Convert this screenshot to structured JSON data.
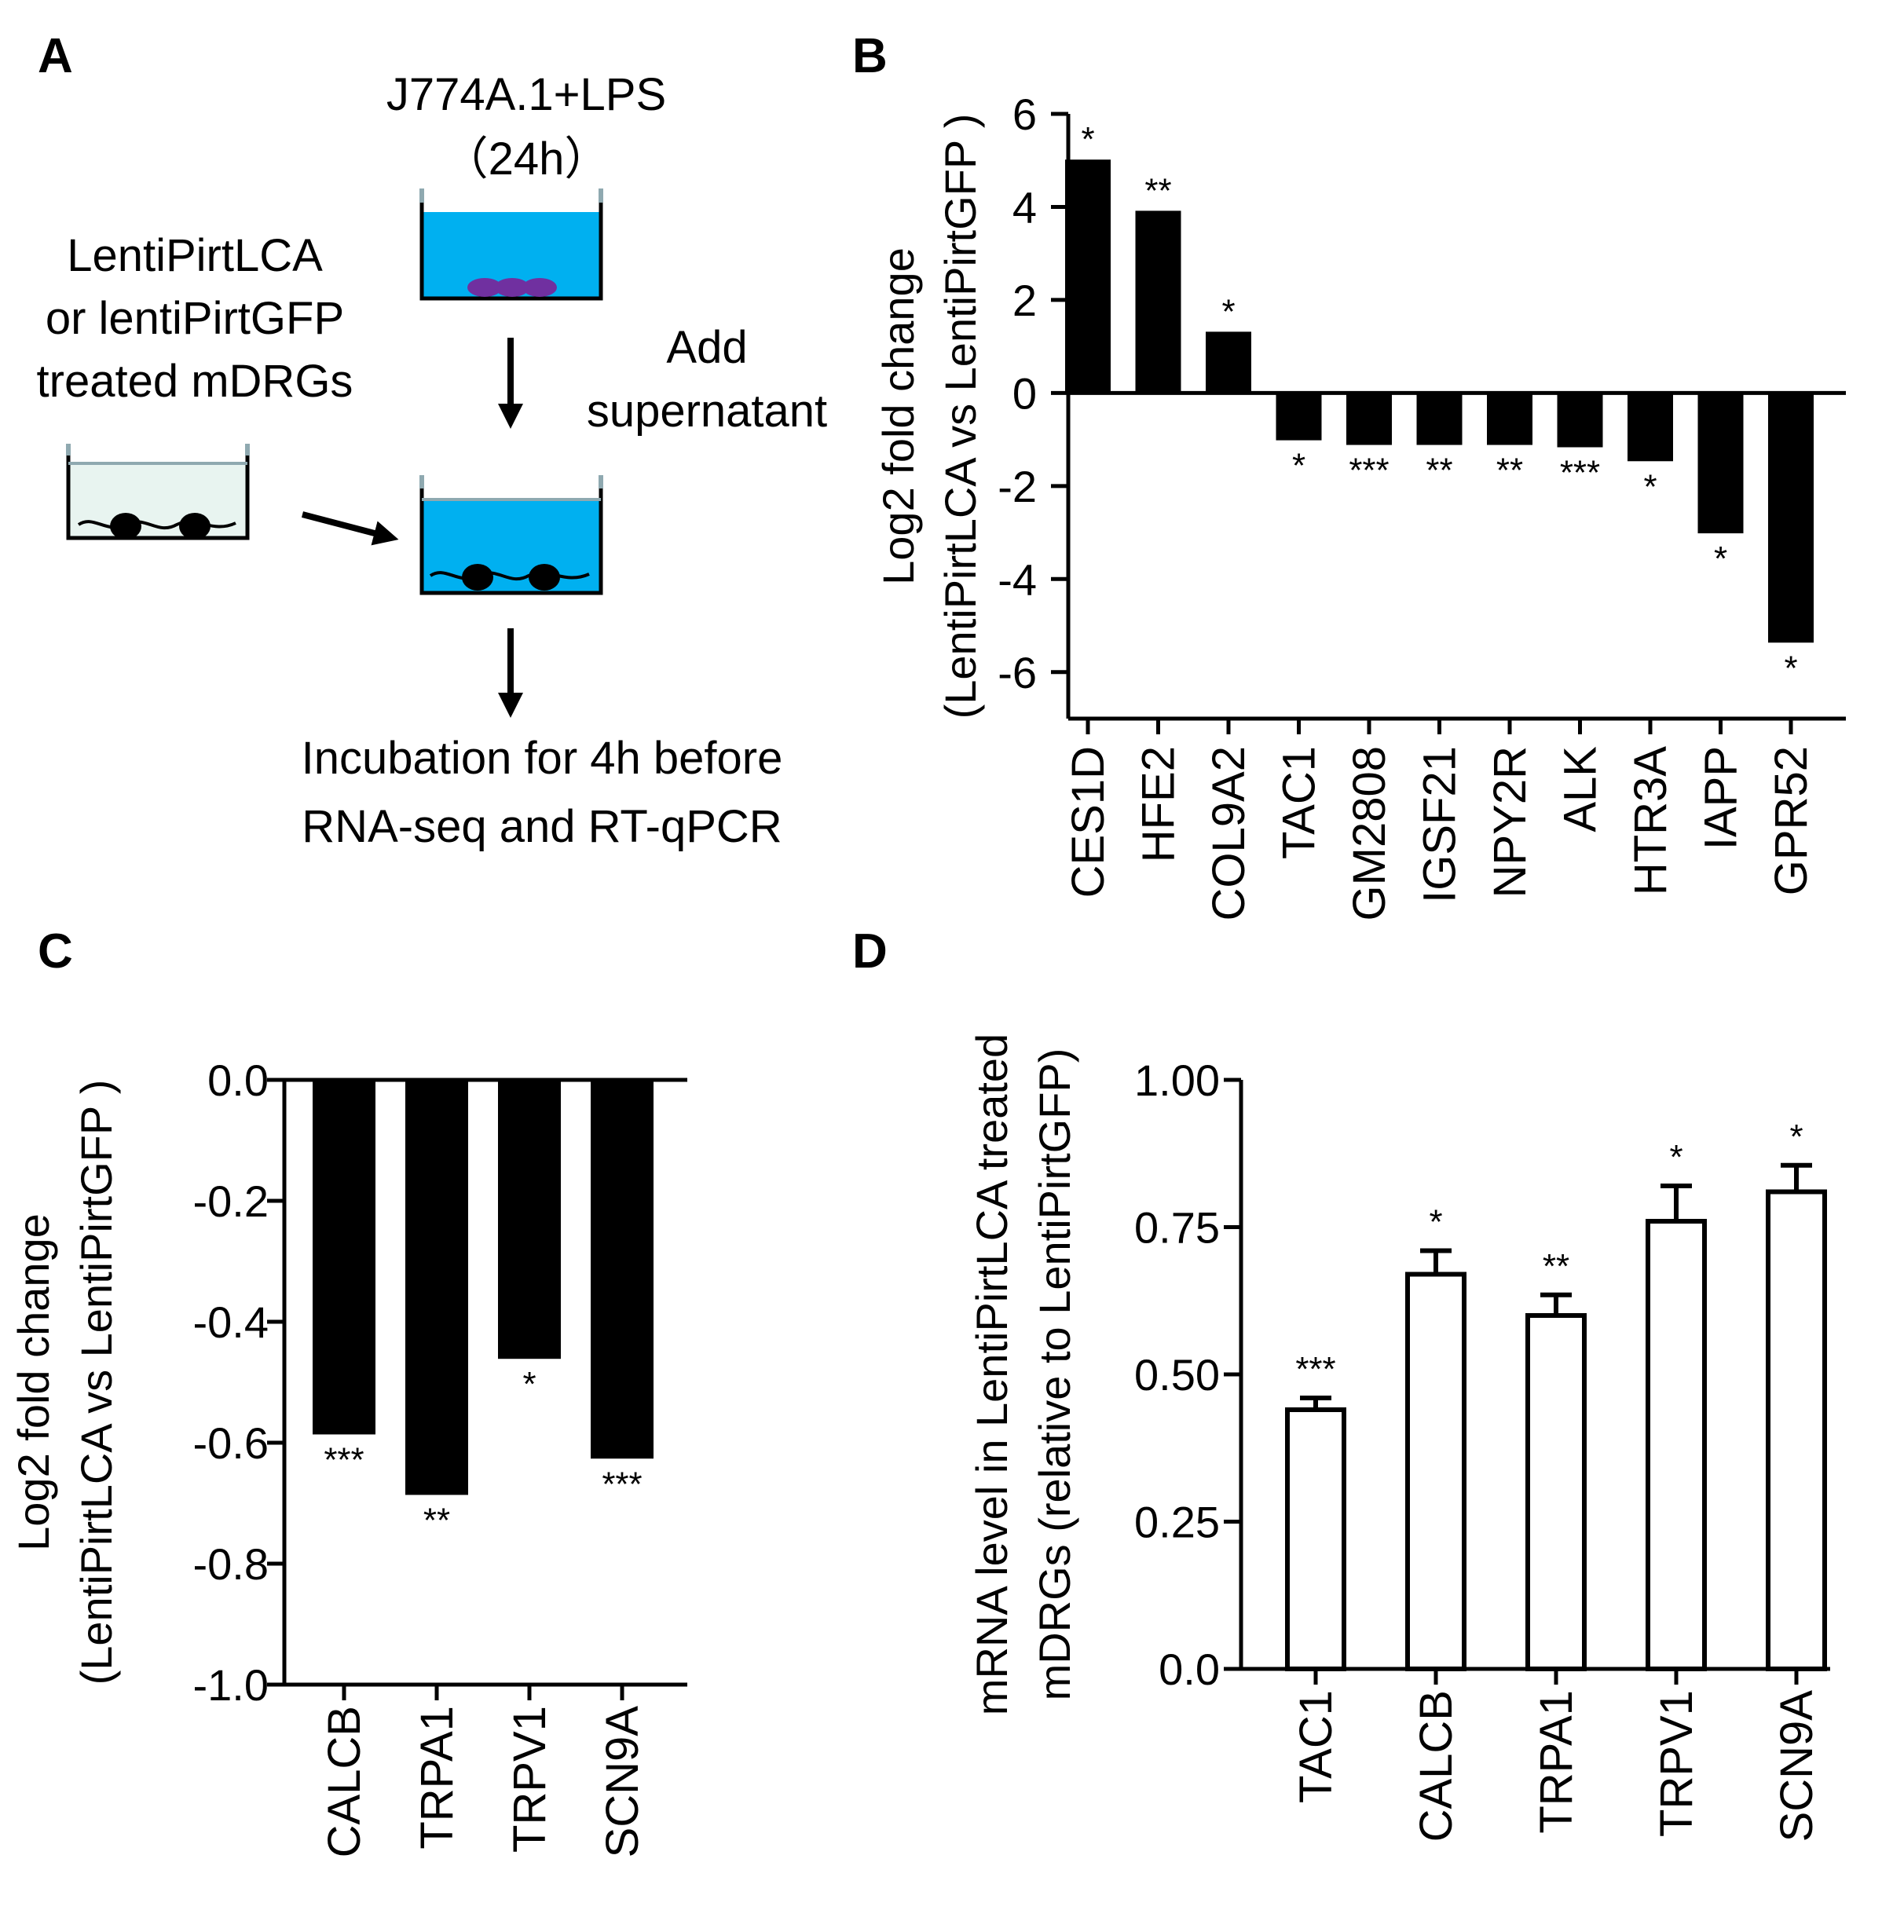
{
  "panel_letters": {
    "a": "A",
    "b": "B",
    "c": "C",
    "d": "D"
  },
  "diagram": {
    "macrophage_label": "J774A.1+LPS",
    "macrophage_time": "（24h）",
    "drg_label_line1": "LentiPirtLCA",
    "drg_label_line2": "or lentiPirtGFP",
    "drg_label_line3": "treated mDRGs",
    "add_label_line1": "Add",
    "add_label_line2": "supernatant",
    "incubation_line1": "Incubation for 4h before",
    "incubation_line2": "RNA-seq and RT-qPCR",
    "medium_color": "#00b0f0",
    "cell_color": "#7030a0",
    "well_border_color": "#8fa9b0",
    "drg_well_fill": "#e8f4f0"
  },
  "chart_data": [
    {
      "panel": "B",
      "type": "bar",
      "ylabel_line1": "Log2 fold change",
      "ylabel_line2": "(LentiPirtLCA vs LentiPirtGFP )",
      "ylim": [
        -7,
        6
      ],
      "yticks": [
        "6",
        "4",
        "2",
        "0",
        "-2",
        "-4",
        "-6"
      ],
      "categories": [
        "CES1D",
        "HFE2",
        "COL9A2",
        "TAC1",
        "GM2808",
        "IGSF21",
        "NPY2R",
        "ALK",
        "HTR3A",
        "IAPP",
        "GPR52"
      ],
      "values": [
        5.0,
        3.9,
        1.3,
        -1.0,
        -1.1,
        -1.1,
        -1.1,
        -1.15,
        -1.45,
        -3.0,
        -5.35
      ],
      "significance": [
        "*",
        "**",
        "*",
        "*",
        "***",
        "**",
        "**",
        "***",
        "*",
        "*",
        "*"
      ],
      "bar_color": "#000000"
    },
    {
      "panel": "C",
      "type": "bar",
      "ylabel_line1": "Log2 fold change",
      "ylabel_line2": "(LentiPirtLCA vs LentiPirtGFP )",
      "ylim": [
        -1.0,
        0.0
      ],
      "yticks": [
        "0.0",
        "-0.2",
        "-0.4",
        "-0.6",
        "-0.8",
        "-1.0"
      ],
      "categories": [
        "CALCB",
        "TRPA1",
        "TRPV1",
        "SCN9A"
      ],
      "values": [
        -0.585,
        -0.685,
        -0.46,
        -0.625
      ],
      "significance": [
        "***",
        "**",
        "*",
        "***"
      ],
      "bar_color": "#000000"
    },
    {
      "panel": "D",
      "type": "bar",
      "ylabel_line1": "mRNA level in LentiPirtLCA treated",
      "ylabel_line2": "mDRGs (relative to LentiPirtGFP)",
      "ylim": [
        0,
        1.0
      ],
      "yticks": [
        "1.00",
        "0.75",
        "0.50",
        "0.25",
        "0.0"
      ],
      "categories": [
        "TAC1",
        "CALCB",
        "TRPA1",
        "TRPV1",
        "SCN9A"
      ],
      "values": [
        0.44,
        0.67,
        0.6,
        0.76,
        0.81
      ],
      "errors": [
        0.02,
        0.04,
        0.035,
        0.06,
        0.045
      ],
      "significance": [
        "***",
        "*",
        "**",
        "*",
        "*"
      ],
      "bar_color": "#ffffff"
    }
  ]
}
